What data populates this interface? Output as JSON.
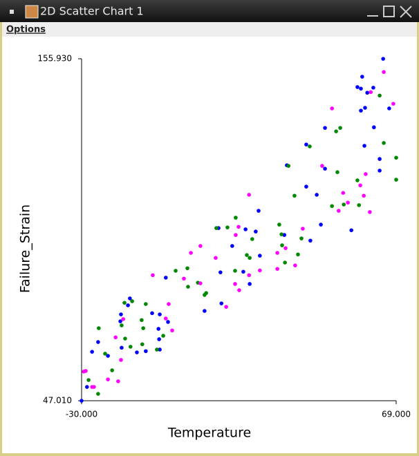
{
  "window": {
    "title": "2D Scatter Chart 1",
    "menu": [
      "Options"
    ]
  },
  "chart_data": {
    "type": "scatter",
    "x_label": "Temperature",
    "y_label": "Failure_Strain",
    "xlim": [
      -30,
      69
    ],
    "ylim": [
      47.01,
      155.93
    ],
    "xticks": [
      {
        "value": -30,
        "label": "-30.000"
      },
      {
        "value": 69,
        "label": "69.000"
      }
    ],
    "yticks": [
      {
        "value": 47.01,
        "label": "47.010"
      },
      {
        "value": 155.93,
        "label": "155.930"
      }
    ],
    "series": [
      {
        "color": "#0000ff",
        "x": [
          64.9,
          58.3,
          56.8,
          57.9,
          61.8,
          59.9,
          59.2,
          57.9,
          66.8,
          46.6,
          62.0,
          40.7,
          59.0,
          34.6,
          63.8,
          46.6,
          63.8,
          40.7,
          44.0,
          25.7,
          21.6,
          24.8,
          13.1,
          45.3,
          42.0,
          54.9,
          33.8,
          17.4,
          26.1,
          13.7,
          20.9,
          22.9,
          -3.5,
          8.7,
          14.0,
          -15.4,
          -14.8,
          -17.6,
          -17.8,
          -5.4,
          -7.8,
          -2.8,
          -5.8,
          -17.4,
          -12.6,
          -9.8,
          -5.6,
          -5.4,
          -24.8,
          -26.7,
          -21.7,
          -28.3,
          -30.0
        ],
        "y": [
          155.9,
          150.2,
          146.9,
          146.4,
          146.7,
          145.1,
          140.3,
          139.4,
          140.1,
          133.9,
          134.1,
          128.6,
          128.2,
          122.0,
          124.0,
          120.9,
          120.3,
          115.2,
          112.6,
          107.5,
          101.6,
          100.9,
          102.0,
          103.1,
          98.0,
          101.3,
          99.8,
          96.3,
          93.2,
          87.9,
          88.1,
          84.2,
          86.2,
          75.6,
          78.0,
          77.4,
          79.6,
          74.5,
          72.3,
          74.5,
          74.9,
          72.1,
          69.9,
          63.9,
          62.4,
          62.8,
          66.6,
          63.3,
          65.7,
          62.6,
          61.3,
          51.4,
          47.0
        ]
      },
      {
        "color": "#008800",
        "x": [
          63.8,
          51.4,
          41.8,
          50.1,
          35.1,
          65.1,
          69.0,
          50.5,
          69.0,
          56.8,
          52.5,
          48.8,
          57.3,
          37.0,
          18.5,
          15.9,
          12.4,
          32.2,
          32.9,
          39.2,
          23.7,
          22.0,
          33.1,
          34.0,
          18.3,
          3.3,
          -0.4,
          9.2,
          6.6,
          8.7,
          -16.5,
          -14.1,
          -9.8,
          -11.1,
          -17.4,
          -10.6,
          -4.3,
          -10.9,
          -14.6,
          -16.3,
          -6.3,
          -24.6,
          -22.6,
          -20.4,
          -27.8,
          -24.8,
          3.5,
          22.9,
          38.1
        ],
        "y": [
          144.2,
          133.9,
          128.0,
          132.8,
          121.8,
          129.1,
          124.4,
          119.8,
          117.4,
          117.2,
          109.5,
          109.0,
          109.3,
          112.3,
          105.3,
          102.2,
          102.0,
          103.1,
          100.0,
          98.7,
          98.5,
          93.4,
          96.5,
          91.0,
          88.4,
          89.2,
          88.4,
          81.3,
          84.6,
          80.7,
          78.2,
          78.7,
          77.8,
          72.7,
          71.0,
          70.1,
          67.7,
          65.0,
          64.2,
          66.8,
          63.3,
          70.1,
          62.0,
          56.7,
          53.6,
          49.2,
          83.3,
          92.5,
          93.6
        ]
      },
      {
        "color": "#ff00ff",
        "x": [
          65.1,
          48.8,
          61.0,
          68.1,
          59.4,
          57.7,
          58.8,
          60.7,
          53.8,
          45.7,
          52.3,
          50.9,
          39.6,
          22.7,
          19.4,
          18.5,
          31.6,
          34.2,
          37.2,
          22.7,
          31.6,
          7.4,
          4.4,
          19.6,
          15.5,
          18.3,
          2.2,
          -7.6,
          7.4,
          -2.6,
          -16.9,
          -3.5,
          -26.1,
          -28.7,
          -29.3,
          -19.3,
          -17.6,
          -21.7,
          -18.5,
          -1.5,
          12.2,
          26.1,
          -26.7
        ],
        "y": [
          151.7,
          140.1,
          145.3,
          141.6,
          119.2,
          115.6,
          112.3,
          107.1,
          110.1,
          121.8,
          113.2,
          107.5,
          101.8,
          112.6,
          102.4,
          99.8,
          94.1,
          95.6,
          90.1,
          87.0,
          89.0,
          96.3,
          94.1,
          82.2,
          76.9,
          84.2,
          85.9,
          87.0,
          84.4,
          77.8,
          73.0,
          73.2,
          51.4,
          56.5,
          56.3,
          67.2,
          60.0,
          53.8,
          53.2,
          69.4,
          92.5,
          88.5,
          51.4
        ]
      }
    ]
  }
}
